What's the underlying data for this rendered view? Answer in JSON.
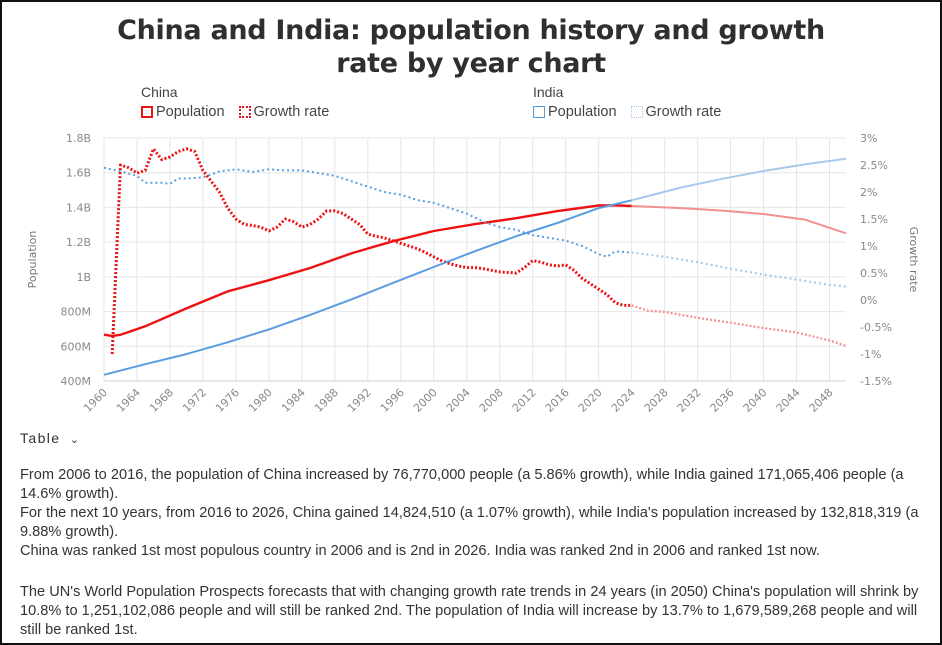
{
  "title_line1": "China and India: population history and growth",
  "title_line2": "rate by year chart",
  "legend": {
    "china": {
      "name": "China",
      "population": "Population",
      "growth": "Growth rate"
    },
    "india": {
      "name": "India",
      "population": "Population",
      "growth": "Growth rate"
    }
  },
  "colors": {
    "china": "#ee1111",
    "china_proj": "#f39090",
    "india": "#5a9de0",
    "india_proj": "#a8c9ee",
    "grid": "#e6e6e6",
    "axis_text": "#888888"
  },
  "table_toggle": "Table",
  "paragraphs": [
    "From 2006 to 2016, the population of China increased by 76,770,000 people (a 5.86% growth), while India gained 171,065,406 people (a 14.6% growth).",
    "For the next 10 years, from 2016 to 2026, China gained 14,824,510 (a 1.07% growth), while India's population increased by 132,818,319 (a 9.88% growth).",
    "China was ranked 1st most populous country in 2006 and is 2nd in 2026. India was ranked 2nd in 2006 and ranked 1st now.",
    "The UN's World Population Prospects forecasts that with changing growth rate trends in 24 years (in 2050) China's population will shrink by 10.8% to 1,251,102,086 people and will still be ranked 2nd. The population of India will increase by 13.7% to 1,679,589,268 people and will still be ranked 1st."
  ],
  "chart_data": {
    "type": "line",
    "title": "China and India: population history and growth rate by year chart",
    "xlabel": "",
    "ylabel": "Population",
    "y2label": "Growth rate",
    "xlim": [
      1960,
      2050
    ],
    "ylim": [
      400000000,
      1800000000
    ],
    "y2lim": [
      -1.5,
      3
    ],
    "projection_start": 2024,
    "x_ticks": [
      "1960",
      "1964",
      "1968",
      "1972",
      "1976",
      "1980",
      "1984",
      "1988",
      "1992",
      "1996",
      "2000",
      "2004",
      "2008",
      "2012",
      "2016",
      "2020",
      "2024",
      "2028",
      "2032",
      "2036",
      "2040",
      "2044",
      "2048"
    ],
    "y_ticks": [
      "400M",
      "600M",
      "800M",
      "1B",
      "1.2B",
      "1.4B",
      "1.6B",
      "1.8B"
    ],
    "y2_ticks": [
      "-1.5%",
      "-1%",
      "-0.5%",
      "0%",
      "0.5%",
      "1%",
      "1.5%",
      "2%",
      "2.5%",
      "3%"
    ],
    "grid": true,
    "legend_position": "top",
    "series": [
      {
        "name": "China Population",
        "axis": "left",
        "style": "solid",
        "color": "#ee1111",
        "points": [
          [
            1960,
            667
          ],
          [
            1961,
            660
          ],
          [
            1962,
            666
          ],
          [
            1965,
            715
          ],
          [
            1970,
            818
          ],
          [
            1975,
            916
          ],
          [
            1980,
            981
          ],
          [
            1985,
            1051
          ],
          [
            1990,
            1135
          ],
          [
            1995,
            1205
          ],
          [
            2000,
            1264
          ],
          [
            2005,
            1304
          ],
          [
            2010,
            1338
          ],
          [
            2015,
            1379
          ],
          [
            2020,
            1411
          ],
          [
            2022,
            1412
          ],
          [
            2024,
            1408
          ],
          [
            2030,
            1396
          ],
          [
            2035,
            1382
          ],
          [
            2040,
            1362
          ],
          [
            2045,
            1330
          ],
          [
            2050,
            1251
          ]
        ],
        "unit": "millions"
      },
      {
        "name": "China Growth rate",
        "axis": "right",
        "style": "dotted",
        "color": "#ee1111",
        "points": [
          [
            1961,
            -1.0
          ],
          [
            1962,
            2.5
          ],
          [
            1963,
            2.45
          ],
          [
            1964,
            2.35
          ],
          [
            1965,
            2.4
          ],
          [
            1966,
            2.8
          ],
          [
            1967,
            2.6
          ],
          [
            1968,
            2.65
          ],
          [
            1969,
            2.75
          ],
          [
            1970,
            2.8
          ],
          [
            1971,
            2.75
          ],
          [
            1972,
            2.4
          ],
          [
            1973,
            2.2
          ],
          [
            1974,
            2.0
          ],
          [
            1975,
            1.7
          ],
          [
            1976,
            1.5
          ],
          [
            1977,
            1.4
          ],
          [
            1978,
            1.38
          ],
          [
            1979,
            1.35
          ],
          [
            1980,
            1.28
          ],
          [
            1981,
            1.35
          ],
          [
            1982,
            1.5
          ],
          [
            1983,
            1.45
          ],
          [
            1984,
            1.35
          ],
          [
            1985,
            1.4
          ],
          [
            1986,
            1.5
          ],
          [
            1987,
            1.65
          ],
          [
            1988,
            1.65
          ],
          [
            1989,
            1.6
          ],
          [
            1990,
            1.5
          ],
          [
            1991,
            1.4
          ],
          [
            1992,
            1.22
          ],
          [
            1993,
            1.18
          ],
          [
            1994,
            1.15
          ],
          [
            1995,
            1.1
          ],
          [
            1996,
            1.05
          ],
          [
            1997,
            1.0
          ],
          [
            1998,
            0.95
          ],
          [
            1999,
            0.88
          ],
          [
            2000,
            0.8
          ],
          [
            2001,
            0.72
          ],
          [
            2002,
            0.67
          ],
          [
            2003,
            0.63
          ],
          [
            2004,
            0.6
          ],
          [
            2005,
            0.6
          ],
          [
            2006,
            0.58
          ],
          [
            2007,
            0.55
          ],
          [
            2008,
            0.52
          ],
          [
            2009,
            0.51
          ],
          [
            2010,
            0.5
          ],
          [
            2011,
            0.6
          ],
          [
            2012,
            0.73
          ],
          [
            2013,
            0.7
          ],
          [
            2014,
            0.65
          ],
          [
            2015,
            0.63
          ],
          [
            2016,
            0.65
          ],
          [
            2017,
            0.55
          ],
          [
            2018,
            0.4
          ],
          [
            2019,
            0.3
          ],
          [
            2020,
            0.2
          ],
          [
            2021,
            0.1
          ],
          [
            2022,
            -0.05
          ],
          [
            2023,
            -0.1
          ],
          [
            2024,
            -0.1
          ],
          [
            2026,
            -0.2
          ],
          [
            2028,
            -0.22
          ],
          [
            2032,
            -0.33
          ],
          [
            2036,
            -0.42
          ],
          [
            2040,
            -0.52
          ],
          [
            2044,
            -0.6
          ],
          [
            2048,
            -0.75
          ],
          [
            2050,
            -0.85
          ]
        ],
        "unit": "percent"
      },
      {
        "name": "India Population",
        "axis": "left",
        "style": "solid",
        "color": "#5a9de0",
        "points": [
          [
            1960,
            436
          ],
          [
            1965,
            497
          ],
          [
            1970,
            555
          ],
          [
            1975,
            623
          ],
          [
            1980,
            697
          ],
          [
            1985,
            781
          ],
          [
            1990,
            870
          ],
          [
            1995,
            964
          ],
          [
            2000,
            1057
          ],
          [
            2005,
            1148
          ],
          [
            2010,
            1234
          ],
          [
            2015,
            1310
          ],
          [
            2020,
            1396
          ],
          [
            2024,
            1441
          ],
          [
            2030,
            1515
          ],
          [
            2035,
            1565
          ],
          [
            2040,
            1610
          ],
          [
            2045,
            1648
          ],
          [
            2050,
            1680
          ]
        ],
        "unit": "millions"
      },
      {
        "name": "India Growth rate",
        "axis": "right",
        "style": "dotted",
        "color": "#5a9de0",
        "points": [
          [
            1960,
            2.45
          ],
          [
            1962,
            2.38
          ],
          [
            1964,
            2.3
          ],
          [
            1965,
            2.17
          ],
          [
            1967,
            2.17
          ],
          [
            1968,
            2.15
          ],
          [
            1969,
            2.25
          ],
          [
            1970,
            2.25
          ],
          [
            1972,
            2.27
          ],
          [
            1974,
            2.38
          ],
          [
            1976,
            2.42
          ],
          [
            1978,
            2.37
          ],
          [
            1980,
            2.42
          ],
          [
            1982,
            2.4
          ],
          [
            1984,
            2.4
          ],
          [
            1986,
            2.35
          ],
          [
            1988,
            2.3
          ],
          [
            1990,
            2.2
          ],
          [
            1992,
            2.1
          ],
          [
            1994,
            2.0
          ],
          [
            1996,
            1.95
          ],
          [
            1998,
            1.85
          ],
          [
            2000,
            1.8
          ],
          [
            2002,
            1.7
          ],
          [
            2004,
            1.6
          ],
          [
            2006,
            1.45
          ],
          [
            2008,
            1.35
          ],
          [
            2010,
            1.3
          ],
          [
            2012,
            1.2
          ],
          [
            2014,
            1.15
          ],
          [
            2016,
            1.1
          ],
          [
            2018,
            1.0
          ],
          [
            2020,
            0.85
          ],
          [
            2021,
            0.8
          ],
          [
            2022,
            0.9
          ],
          [
            2024,
            0.88
          ],
          [
            2028,
            0.8
          ],
          [
            2032,
            0.7
          ],
          [
            2036,
            0.58
          ],
          [
            2040,
            0.47
          ],
          [
            2044,
            0.38
          ],
          [
            2048,
            0.28
          ],
          [
            2050,
            0.25
          ]
        ],
        "unit": "percent"
      }
    ]
  }
}
